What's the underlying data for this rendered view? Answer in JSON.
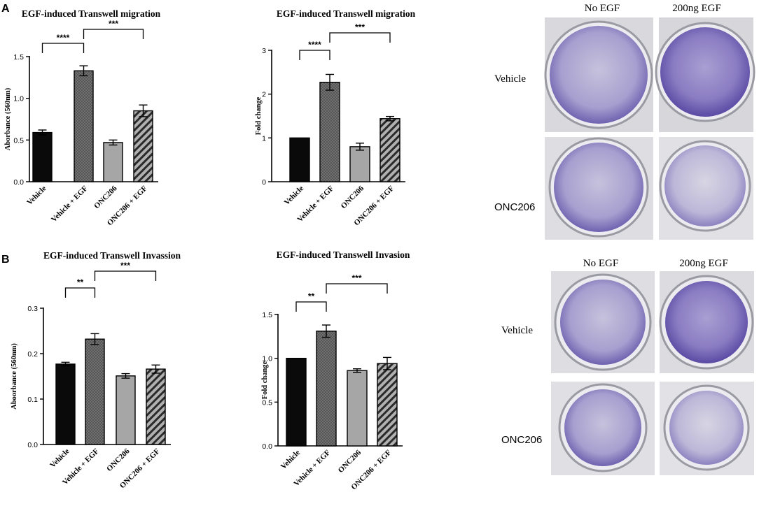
{
  "panels": {
    "a": "A",
    "b": "B"
  },
  "colors": {
    "vehicle": "#0a0a0a",
    "vehicle_egf": "#6e6e6e",
    "onc206": "#a6a6a6",
    "onc206_egf": "#9a9a9a",
    "crystal_violet": "#7a6bb6"
  },
  "chart_data": [
    {
      "id": "a1",
      "type": "bar",
      "title": "EGF-induced Transwell migration",
      "ylabel": "Aborbance (560nm)",
      "categories": [
        "Vehicle",
        "Vehicle + EGF",
        "ONC206",
        "ONC206 + EGF"
      ],
      "values": [
        0.59,
        1.33,
        0.47,
        0.85
      ],
      "errors": [
        0.03,
        0.06,
        0.03,
        0.07
      ],
      "ylim": [
        0,
        1.5
      ],
      "yticks": [
        "0.0",
        "0.5",
        "1.0",
        "1.5"
      ],
      "ytick_values": [
        0,
        0.5,
        1.0,
        1.5
      ],
      "significance": [
        {
          "from": 0,
          "to": 1,
          "label": "****"
        },
        {
          "from": 1,
          "to": 3,
          "label": "***"
        }
      ]
    },
    {
      "id": "a2",
      "type": "bar",
      "title": "EGF-induced Transwell migration",
      "ylabel": "Fold change",
      "categories": [
        "Vehicle",
        "Vehicle + EGF",
        "ONC206",
        "ONC206 + EGF"
      ],
      "values": [
        1.0,
        2.27,
        0.8,
        1.44
      ],
      "errors": [
        0.0,
        0.18,
        0.08,
        0.05
      ],
      "ylim": [
        0,
        3
      ],
      "yticks": [
        "0",
        "1",
        "2",
        "3"
      ],
      "ytick_values": [
        0,
        1,
        2,
        3
      ],
      "significance": [
        {
          "from": 0,
          "to": 1,
          "label": "****"
        },
        {
          "from": 1,
          "to": 3,
          "label": "***"
        }
      ]
    },
    {
      "id": "b1",
      "type": "bar",
      "title": "EGF-induced Transwell Invassion",
      "ylabel": "Aboorbance (560nm)",
      "categories": [
        "Vehicle",
        "Vehicle + EGF",
        "ONC206",
        "ONC206 + EGF"
      ],
      "values": [
        0.177,
        0.232,
        0.151,
        0.166
      ],
      "errors": [
        0.004,
        0.012,
        0.005,
        0.009
      ],
      "ylim": [
        0,
        0.3
      ],
      "yticks": [
        "0.0",
        "0.1",
        "0.2",
        "0.3"
      ],
      "ytick_values": [
        0,
        0.1,
        0.2,
        0.3
      ],
      "significance": [
        {
          "from": 0,
          "to": 1,
          "label": "**"
        },
        {
          "from": 1,
          "to": 3,
          "label": "***"
        }
      ]
    },
    {
      "id": "b2",
      "type": "bar",
      "title": "EGF-induced  Transwell Invasion",
      "ylabel": "Fold change",
      "categories": [
        "Vehicle",
        "Vehicle + EGF",
        "ONC206",
        "ONC206 + EGF"
      ],
      "values": [
        1.0,
        1.31,
        0.86,
        0.94
      ],
      "errors": [
        0.0,
        0.07,
        0.02,
        0.07
      ],
      "ylim": [
        0,
        1.5
      ],
      "yticks": [
        "0.0",
        "0.5",
        "1.0",
        "1.5"
      ],
      "ytick_values": [
        0,
        0.5,
        1.0,
        1.5
      ],
      "significance": [
        {
          "from": 0,
          "to": 1,
          "label": "**"
        },
        {
          "from": 1,
          "to": 3,
          "label": "***"
        }
      ]
    }
  ],
  "photos": {
    "migration": {
      "col_no_egf": "No EGF",
      "col_200ng": "200ng  EGF",
      "row_vehicle": "Vehicle",
      "row_onc206": "ONC206"
    },
    "invasion": {
      "col_no_egf": "No EGF",
      "col_200ng": "200ng  EGF",
      "row_vehicle": "Vehicle",
      "row_onc206": "ONC206"
    }
  }
}
